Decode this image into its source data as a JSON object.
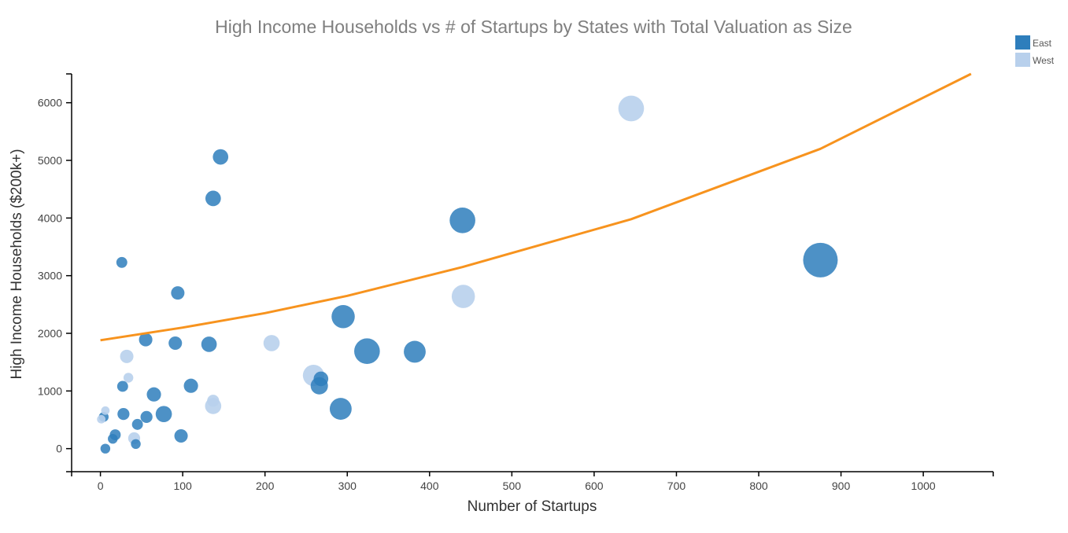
{
  "chart_data": {
    "type": "scatter",
    "title": "High Income  Households vs # of Startups by States with Total Valuation as Size",
    "xlabel": "Number of Startups",
    "ylabel": "High Income Households ($200k+)",
    "xlim": [
      -35,
      1085
    ],
    "ylim": [
      -400,
      6500
    ],
    "xticks": [
      0,
      100,
      200,
      300,
      400,
      500,
      600,
      700,
      800,
      900,
      1000
    ],
    "yticks": [
      0,
      1000,
      2000,
      3000,
      4000,
      5000,
      6000
    ],
    "legend": {
      "position": "top-right",
      "items": [
        {
          "name": "East",
          "color": "#2e7ebc"
        },
        {
          "name": "West",
          "color": "#b8d0ec"
        }
      ]
    },
    "series": [
      {
        "name": "East",
        "color": "#2e7ebc",
        "points": [
          {
            "x": 875,
            "y": 3270,
            "size": 100
          },
          {
            "x": 440,
            "y": 3960,
            "size": 55
          },
          {
            "x": 324,
            "y": 1690,
            "size": 55
          },
          {
            "x": 295,
            "y": 2290,
            "size": 45
          },
          {
            "x": 382,
            "y": 1680,
            "size": 40
          },
          {
            "x": 292,
            "y": 690,
            "size": 40
          },
          {
            "x": 146,
            "y": 5060,
            "size": 20
          },
          {
            "x": 137,
            "y": 4340,
            "size": 20
          },
          {
            "x": 26,
            "y": 3230,
            "size": 10
          },
          {
            "x": 94,
            "y": 2700,
            "size": 15
          },
          {
            "x": 55,
            "y": 1890,
            "size": 15
          },
          {
            "x": 91,
            "y": 1830,
            "size": 15
          },
          {
            "x": 132,
            "y": 1810,
            "size": 20
          },
          {
            "x": 110,
            "y": 1090,
            "size": 17
          },
          {
            "x": 268,
            "y": 1210,
            "size": 18
          },
          {
            "x": 266,
            "y": 1090,
            "size": 25
          },
          {
            "x": 27,
            "y": 1080,
            "size": 10
          },
          {
            "x": 65,
            "y": 940,
            "size": 17
          },
          {
            "x": 28,
            "y": 600,
            "size": 12
          },
          {
            "x": 56,
            "y": 550,
            "size": 12
          },
          {
            "x": 77,
            "y": 600,
            "size": 22
          },
          {
            "x": 4,
            "y": 550,
            "size": 8
          },
          {
            "x": 45,
            "y": 420,
            "size": 10
          },
          {
            "x": 18,
            "y": 240,
            "size": 10
          },
          {
            "x": 15,
            "y": 170,
            "size": 8
          },
          {
            "x": 98,
            "y": 220,
            "size": 15
          },
          {
            "x": 43,
            "y": 80,
            "size": 8
          },
          {
            "x": 6,
            "y": 0,
            "size": 8
          }
        ]
      },
      {
        "name": "West",
        "color": "#b8d0ec",
        "points": [
          {
            "x": 645,
            "y": 5900,
            "size": 55
          },
          {
            "x": 441,
            "y": 2640,
            "size": 45
          },
          {
            "x": 208,
            "y": 1830,
            "size": 22
          },
          {
            "x": 259,
            "y": 1270,
            "size": 38
          },
          {
            "x": 137,
            "y": 740,
            "size": 22
          },
          {
            "x": 137,
            "y": 830,
            "size": 12
          },
          {
            "x": 32,
            "y": 1600,
            "size": 15
          },
          {
            "x": 34,
            "y": 1230,
            "size": 8
          },
          {
            "x": 6,
            "y": 660,
            "size": 6
          },
          {
            "x": 1,
            "y": 510,
            "size": 6
          },
          {
            "x": 41,
            "y": 180,
            "size": 12
          }
        ]
      }
    ],
    "trendline": {
      "name": "Trend",
      "color": "#f7931e",
      "points": [
        {
          "x": 0,
          "y": 1880
        },
        {
          "x": 100,
          "y": 2100
        },
        {
          "x": 200,
          "y": 2350
        },
        {
          "x": 300,
          "y": 2650
        },
        {
          "x": 440,
          "y": 3150
        },
        {
          "x": 645,
          "y": 3980
        },
        {
          "x": 875,
          "y": 5200
        },
        {
          "x": 1058,
          "y": 6500
        }
      ]
    }
  }
}
